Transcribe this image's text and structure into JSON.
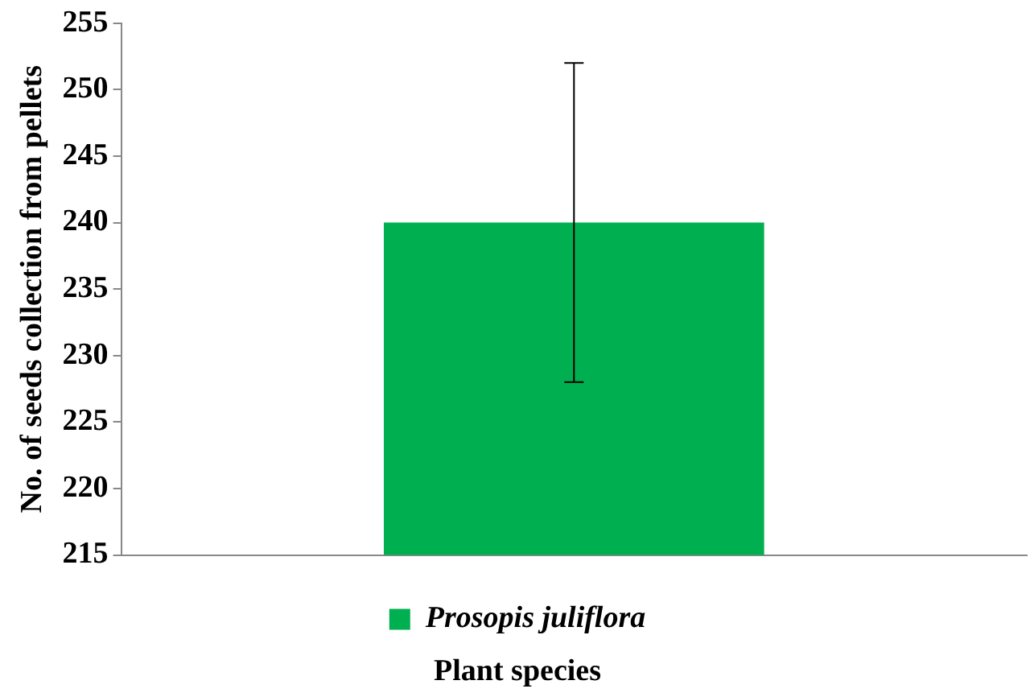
{
  "chart_data": {
    "type": "bar",
    "xlabel": "Plant species",
    "ylabel": "No. of seeds collection from pellets",
    "categories": [
      null
    ],
    "series": [
      {
        "name": "Prosopis juliflora",
        "color": "#00b050",
        "values": [
          240
        ],
        "errors": [
          12
        ]
      }
    ],
    "ylim": [
      215,
      255
    ],
    "yticks": [
      215,
      220,
      225,
      230,
      235,
      240,
      245,
      250,
      255
    ],
    "grid": false,
    "legend": "bottom"
  }
}
